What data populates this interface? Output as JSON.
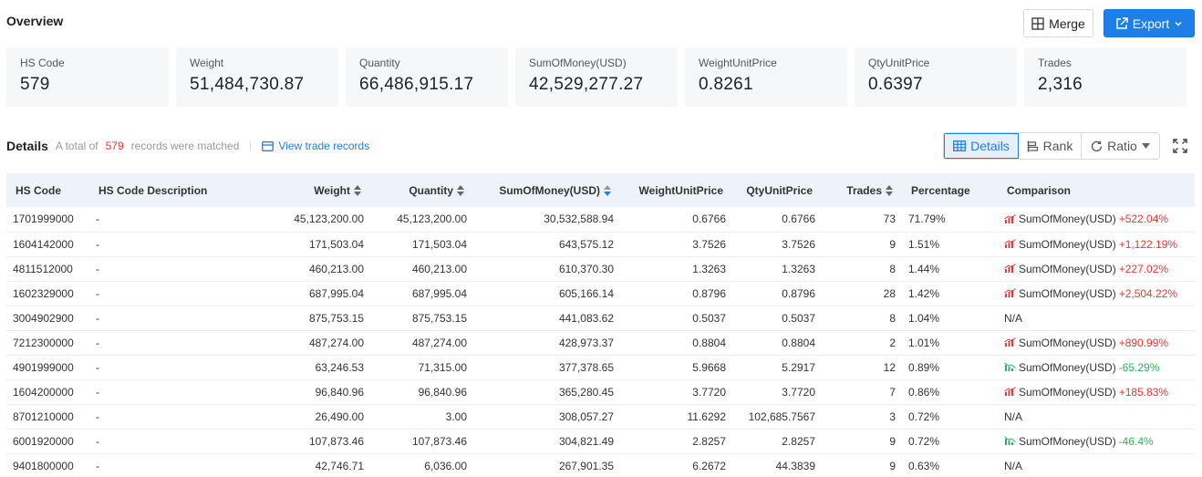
{
  "overview": {
    "title": "Overview",
    "merge_label": "Merge",
    "export_label": "Export"
  },
  "cards": [
    {
      "label": "HS Code",
      "value": "579"
    },
    {
      "label": "Weight",
      "value": "51,484,730.87"
    },
    {
      "label": "Quantity",
      "value": "66,486,915.17"
    },
    {
      "label": "SumOfMoney(USD)",
      "value": "42,529,277.27"
    },
    {
      "label": "WeightUnitPrice",
      "value": "0.8261"
    },
    {
      "label": "QtyUnitPrice",
      "value": "0.6397"
    },
    {
      "label": "Trades",
      "value": "2,316"
    }
  ],
  "details": {
    "title": "Details",
    "total_prefix": "A total of",
    "total_count": "579",
    "total_suffix": "records were matched",
    "view_link": "View trade records",
    "views": {
      "details": "Details",
      "rank": "Rank",
      "ratio": "Ratio"
    }
  },
  "table": {
    "headers": {
      "hs_code": "HS Code",
      "desc": "HS Code Description",
      "weight": "Weight",
      "quantity": "Quantity",
      "money": "SumOfMoney(USD)",
      "wup": "WeightUnitPrice",
      "qup": "QtyUnitPrice",
      "trades": "Trades",
      "pct": "Percentage",
      "cmp": "Comparison"
    },
    "rows": [
      {
        "hs": "1701999000",
        "desc": "-",
        "weight": "45,123,200.00",
        "qty": "45,123,200.00",
        "money": "30,532,588.94",
        "wup": "0.6766",
        "qup": "0.6766",
        "trades": "73",
        "pct": "71.79%",
        "cmp_label": "SumOfMoney(USD)",
        "cmp_val": "+522.04%",
        "dir": "up"
      },
      {
        "hs": "1604142000",
        "desc": "-",
        "weight": "171,503.04",
        "qty": "171,503.04",
        "money": "643,575.12",
        "wup": "3.7526",
        "qup": "3.7526",
        "trades": "9",
        "pct": "1.51%",
        "cmp_label": "SumOfMoney(USD)",
        "cmp_val": "+1,122.19%",
        "dir": "up"
      },
      {
        "hs": "4811512000",
        "desc": "-",
        "weight": "460,213.00",
        "qty": "460,213.00",
        "money": "610,370.30",
        "wup": "1.3263",
        "qup": "1.3263",
        "trades": "8",
        "pct": "1.44%",
        "cmp_label": "SumOfMoney(USD)",
        "cmp_val": "+227.02%",
        "dir": "up"
      },
      {
        "hs": "1602329000",
        "desc": "-",
        "weight": "687,995.04",
        "qty": "687,995.04",
        "money": "605,166.14",
        "wup": "0.8796",
        "qup": "0.8796",
        "trades": "28",
        "pct": "1.42%",
        "cmp_label": "SumOfMoney(USD)",
        "cmp_val": "+2,504.22%",
        "dir": "up"
      },
      {
        "hs": "3004902900",
        "desc": "-",
        "weight": "875,753.15",
        "qty": "875,753.15",
        "money": "441,083.62",
        "wup": "0.5037",
        "qup": "0.5037",
        "trades": "8",
        "pct": "1.04%",
        "cmp_label": "N/A",
        "cmp_val": "",
        "dir": "na"
      },
      {
        "hs": "7212300000",
        "desc": "-",
        "weight": "487,274.00",
        "qty": "487,274.00",
        "money": "428,973.37",
        "wup": "0.8804",
        "qup": "0.8804",
        "trades": "2",
        "pct": "1.01%",
        "cmp_label": "SumOfMoney(USD)",
        "cmp_val": "+890.99%",
        "dir": "up"
      },
      {
        "hs": "4901999000",
        "desc": "-",
        "weight": "63,246.53",
        "qty": "71,315.00",
        "money": "377,378.65",
        "wup": "5.9668",
        "qup": "5.2917",
        "trades": "12",
        "pct": "0.89%",
        "cmp_label": "SumOfMoney(USD)",
        "cmp_val": "-65.29%",
        "dir": "down"
      },
      {
        "hs": "1604200000",
        "desc": "-",
        "weight": "96,840.96",
        "qty": "96,840.96",
        "money": "365,280.45",
        "wup": "3.7720",
        "qup": "3.7720",
        "trades": "7",
        "pct": "0.86%",
        "cmp_label": "SumOfMoney(USD)",
        "cmp_val": "+185.83%",
        "dir": "up"
      },
      {
        "hs": "8701210000",
        "desc": "-",
        "weight": "26,490.00",
        "qty": "3.00",
        "money": "308,057.27",
        "wup": "11.6292",
        "qup": "102,685.7567",
        "trades": "3",
        "pct": "0.72%",
        "cmp_label": "N/A",
        "cmp_val": "",
        "dir": "na"
      },
      {
        "hs": "6001920000",
        "desc": "-",
        "weight": "107,873.46",
        "qty": "107,873.46",
        "money": "304,821.49",
        "wup": "2.8257",
        "qup": "2.8257",
        "trades": "9",
        "pct": "0.72%",
        "cmp_label": "SumOfMoney(USD)",
        "cmp_val": "-46.4%",
        "dir": "down"
      },
      {
        "hs": "9401800000",
        "desc": "-",
        "weight": "42,746.71",
        "qty": "6,036.00",
        "money": "267,901.35",
        "wup": "6.2672",
        "qup": "44.3839",
        "trades": "9",
        "pct": "0.63%",
        "cmp_label": "N/A",
        "cmp_val": "",
        "dir": "na"
      }
    ]
  },
  "colors": {
    "accent": "#1e7fe8",
    "up": "#e53935",
    "down": "#2db35d",
    "header_bg": "#eef3fa"
  },
  "icons": {
    "merge": "merge-icon",
    "export": "export-icon",
    "chevron": "chevron-down-icon",
    "view": "card-icon",
    "details": "table-icon",
    "rank": "rank-icon",
    "ratio": "refresh-icon",
    "expand": "expand-icon",
    "trend_up": "chart-up-icon",
    "trend_down": "chart-down-icon",
    "sort": "sort-icon"
  }
}
